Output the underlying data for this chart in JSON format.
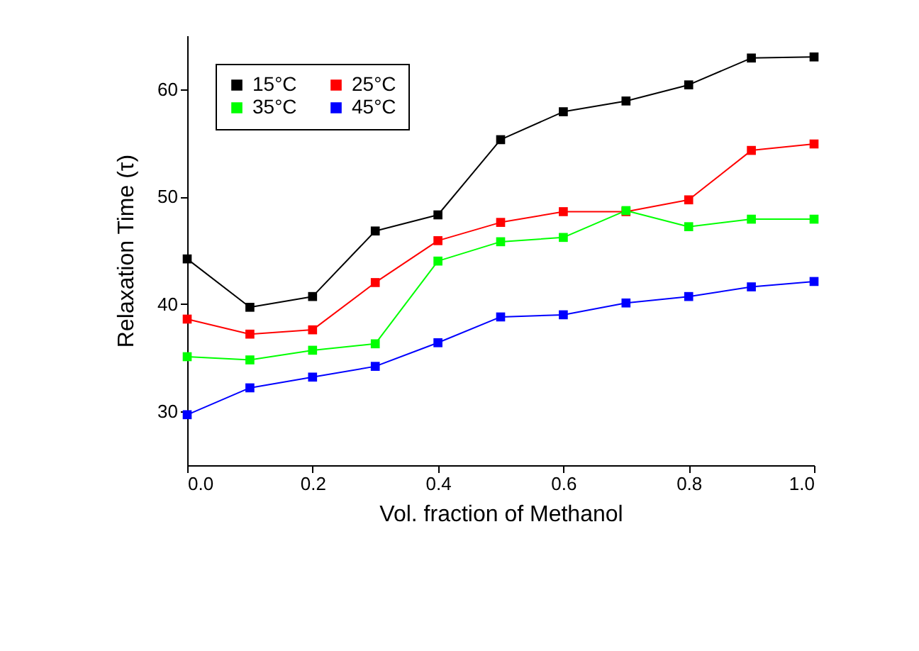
{
  "chart_data": {
    "type": "line",
    "xlabel": "Vol. fraction of Methanol",
    "ylabel": "Relaxation Time (τ)",
    "x": [
      0,
      0.1,
      0.2,
      0.3,
      0.4,
      0.5,
      0.6,
      0.7,
      0.8,
      0.9,
      1.0
    ],
    "series": [
      {
        "name": "15°C",
        "color": "#000000",
        "values": [
          44.2,
          39.7,
          40.7,
          46.8,
          48.3,
          55.3,
          57.9,
          58.9,
          60.4,
          62.9,
          63.0
        ]
      },
      {
        "name": "25°C",
        "color": "#ff0000",
        "values": [
          38.6,
          37.2,
          37.6,
          42.0,
          45.9,
          47.6,
          48.6,
          48.6,
          49.7,
          54.3,
          54.9
        ]
      },
      {
        "name": "35°C",
        "color": "#00ff00",
        "values": [
          35.1,
          34.8,
          35.7,
          36.3,
          44.0,
          45.8,
          46.2,
          48.7,
          47.2,
          47.9,
          47.9
        ]
      },
      {
        "name": "45°C",
        "color": "#0000ff",
        "values": [
          29.7,
          32.2,
          33.2,
          34.2,
          36.4,
          38.8,
          39.0,
          40.1,
          40.7,
          41.6,
          42.1
        ]
      }
    ],
    "xlim": [
      0,
      1
    ],
    "xticks": [
      {
        "value": 0,
        "label": "0.0"
      },
      {
        "value": 0.2,
        "label": "0.2"
      },
      {
        "value": 0.4,
        "label": "0.4"
      },
      {
        "value": 0.6,
        "label": "0.6"
      },
      {
        "value": 0.8,
        "label": "0.8"
      },
      {
        "value": 1,
        "label": "1.0"
      }
    ],
    "ylim": [
      25,
      65
    ],
    "yticks": [
      30,
      40,
      50,
      60
    ],
    "grid": false,
    "legend": "top left",
    "marker": "square",
    "line_style": "solid"
  }
}
